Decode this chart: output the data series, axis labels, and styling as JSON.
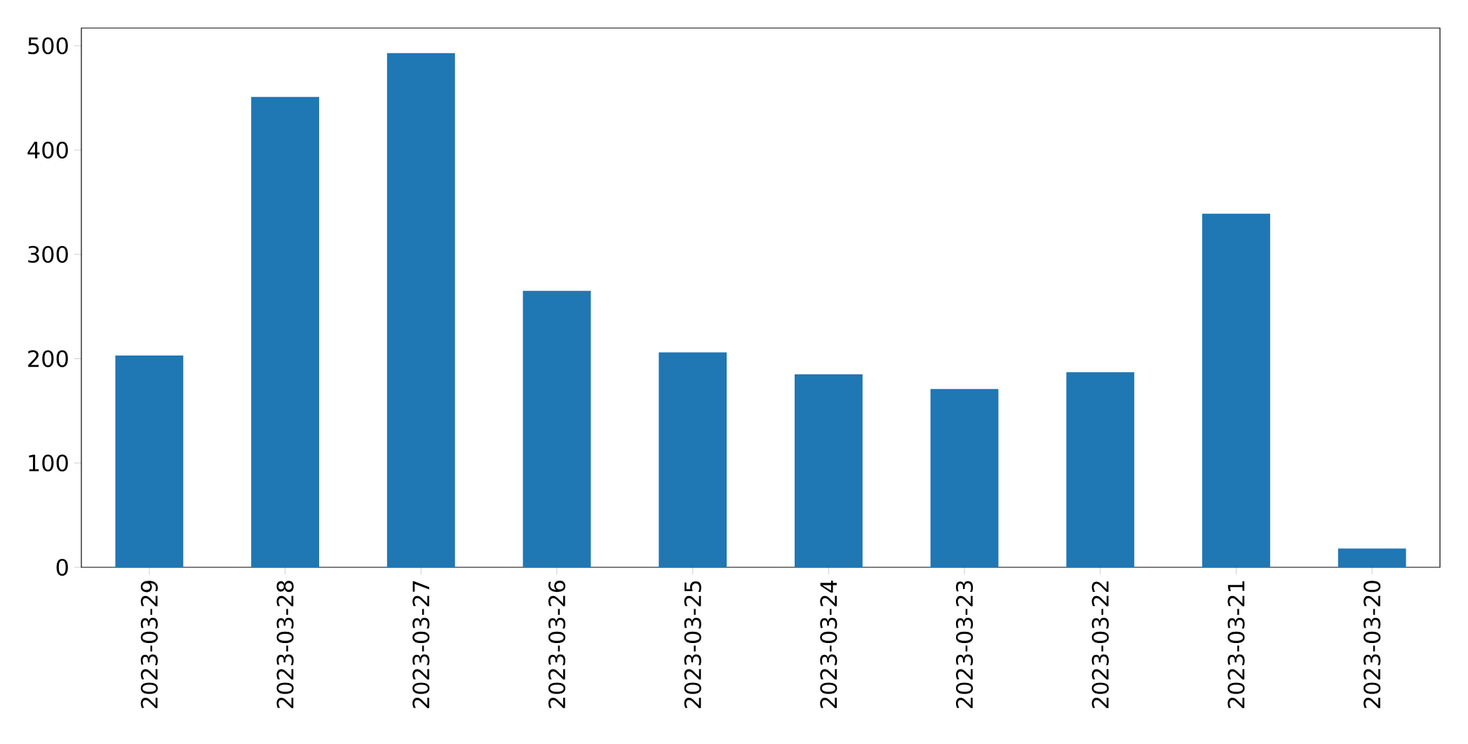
{
  "chart_data": {
    "type": "bar",
    "categories": [
      "2023-03-29",
      "2023-03-28",
      "2023-03-27",
      "2023-03-26",
      "2023-03-25",
      "2023-03-24",
      "2023-03-23",
      "2023-03-22",
      "2023-03-21",
      "2023-03-20"
    ],
    "values": [
      203,
      451,
      493,
      265,
      206,
      185,
      171,
      187,
      339,
      18
    ],
    "color": "#1f77b4",
    "ylim": [
      0,
      517
    ],
    "yticks": [
      0,
      100,
      200,
      300,
      400,
      500
    ],
    "grid": false,
    "legend": false
  }
}
